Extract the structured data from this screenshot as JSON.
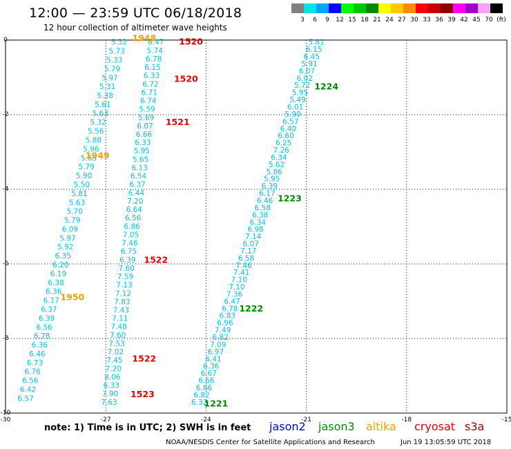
{
  "header": {
    "title": "12:00 — 23:59 UTC 06/18/2018",
    "subtitle": "12 hour collection of altimeter wave heights"
  },
  "colorbar": {
    "labels": [
      "3",
      "6",
      "9",
      "12",
      "15",
      "18",
      "21",
      "24",
      "27",
      "30",
      "33",
      "36",
      "39",
      "42",
      "45",
      "70",
      "(ft)"
    ],
    "colors": [
      "#808080",
      "#00e5e5",
      "#00a5ff",
      "#0000ff",
      "#00ff00",
      "#00c800",
      "#008c00",
      "#ffff00",
      "#ffc800",
      "#ff8c00",
      "#ff0000",
      "#c80000",
      "#8c0000",
      "#ff00ff",
      "#a000c8",
      "#ffa0ff",
      "#000000"
    ]
  },
  "axes": {
    "x_ticks": [
      "-30",
      "-27",
      "-24",
      "-21",
      "-18",
      "-15"
    ],
    "y_ticks": [
      "0",
      "-2",
      "-4",
      "-6",
      "-8",
      "-10"
    ],
    "x_range": [
      -30,
      -15
    ],
    "y_range": [
      -10,
      0
    ],
    "grid": "dotted"
  },
  "tracks": [
    {
      "satellite": "altika",
      "color": "#00bfe6",
      "start": [
        -26.6,
        -0.05
      ],
      "end": [
        -29.4,
        -9.6
      ],
      "values": [
        "5.32",
        "5.73",
        "5.33",
        "5.79",
        "5.97",
        "5.31",
        "5.38",
        "5.61",
        "5.63",
        "5.32",
        "5.56",
        "5.88",
        "5.96",
        "5.65",
        "5.79",
        "5.90",
        "5.50",
        "5.81",
        "5.63",
        "5.70",
        "5.79",
        "6.09",
        "5.97",
        "5.92",
        "6.35",
        "6.20",
        "6.19",
        "6.38",
        "6.36",
        "6.17",
        "6.37",
        "6.39",
        "6.56",
        "6.78",
        "6.36",
        "6.46",
        "6.73",
        "6.76",
        "6.56",
        "6.42",
        "6.57"
      ]
    },
    {
      "satellite": "cryosat",
      "color": "#00bfe6",
      "start": [
        -25.5,
        -0.05
      ],
      "end": [
        -26.9,
        -9.7
      ],
      "values": [
        "6.47",
        "5.74",
        "6.78",
        "6.15",
        "6.33",
        "6.72",
        "6.71",
        "6.74",
        "5.59",
        "5.69",
        "6.07",
        "6.66",
        "6.33",
        "5.95",
        "5.65",
        "6.13",
        "6.54",
        "6.37",
        "6.44",
        "7.20",
        "6.64",
        "6.56",
        "6.86",
        "7.05",
        "7.46",
        "6.75",
        "6.39",
        "7.60",
        "7.59",
        "7.13",
        "7.12",
        "7.83",
        "7.43",
        "7.11",
        "7.48",
        "7.60",
        "7.53",
        "7.02",
        "7.45",
        "7.20",
        "8.06",
        "6.33",
        "7.90",
        "7.63"
      ]
    },
    {
      "satellite": "jason3",
      "color": "#00bfe6",
      "start": [
        -20.7,
        -0.05
      ],
      "end": [
        -24.2,
        -9.7
      ],
      "values": [
        "5.81",
        "6.15",
        "6.45",
        "5.91",
        "6.07",
        "6.02",
        "5.72",
        "5.95",
        "5.49",
        "6.01",
        "5.90",
        "6.57",
        "6.40",
        "6.60",
        "6.25",
        "7.26",
        "6.34",
        "5.62",
        "5.86",
        "5.95",
        "6.39",
        "6.17",
        "6.46",
        "6.58",
        "6.38",
        "6.34",
        "6.98",
        "7.14",
        "6.07",
        "7.17",
        "6.58",
        "7.46",
        "7.41",
        "7.10",
        "7.10",
        "7.36",
        "6.47",
        "6.78",
        "6.83",
        "6.96",
        "7.49",
        "6.82",
        "7.09",
        "6.97",
        "6.41",
        "6.36",
        "6.67",
        "6.66",
        "6.66",
        "6.82",
        "6.32"
      ]
    }
  ],
  "time_labels": [
    {
      "text": "1948",
      "satellite": "altika",
      "color": "#f0a000",
      "lon": -25.85,
      "lat": 0.05
    },
    {
      "text": "1949",
      "satellite": "altika",
      "color": "#f0a000",
      "lon": -27.25,
      "lat": -3.1
    },
    {
      "text": "1950",
      "satellite": "altika",
      "color": "#f0a000",
      "lon": -28.0,
      "lat": -6.9
    },
    {
      "text": "1520",
      "satellite": "cryosat",
      "color": "#e00000",
      "lon": -24.45,
      "lat": -0.05
    },
    {
      "text": "1520",
      "satellite": "cryosat",
      "color": "#e00000",
      "lon": -24.6,
      "lat": -1.05
    },
    {
      "text": "1521",
      "satellite": "cryosat",
      "color": "#e00000",
      "lon": -24.85,
      "lat": -2.2
    },
    {
      "text": "1522",
      "satellite": "cryosat",
      "color": "#e00000",
      "lon": -25.5,
      "lat": -5.9
    },
    {
      "text": "1522",
      "satellite": "cryosat",
      "color": "#e00000",
      "lon": -25.85,
      "lat": -8.55
    },
    {
      "text": "1523",
      "satellite": "cryosat",
      "color": "#e00000",
      "lon": -25.9,
      "lat": -9.5
    },
    {
      "text": "1224",
      "satellite": "jason3",
      "color": "#008800",
      "lon": -20.4,
      "lat": -1.25
    },
    {
      "text": "1223",
      "satellite": "jason3",
      "color": "#008800",
      "lon": -21.5,
      "lat": -4.25
    },
    {
      "text": "1222",
      "satellite": "jason3",
      "color": "#008800",
      "lon": -22.65,
      "lat": -7.2
    },
    {
      "text": "1221",
      "satellite": "jason3",
      "color": "#008800",
      "lon": -23.7,
      "lat": -9.75
    }
  ],
  "legend": {
    "note": "note:  1) Time is in UTC;  2) SWH is in feet",
    "satellites": [
      {
        "name": "jason2",
        "color": "#0000e0"
      },
      {
        "name": "jason3",
        "color": "#008c00"
      },
      {
        "name": "altika",
        "color": "#f0a000"
      },
      {
        "name": "cryosat",
        "color": "#e00000"
      },
      {
        "name": "s3a",
        "color": "#a00000"
      }
    ]
  },
  "footer": {
    "left": "NOAA/NESDIS Center for Satellite Applications and Research",
    "right": "Jun 19 13:05:59 UTC 2018"
  }
}
